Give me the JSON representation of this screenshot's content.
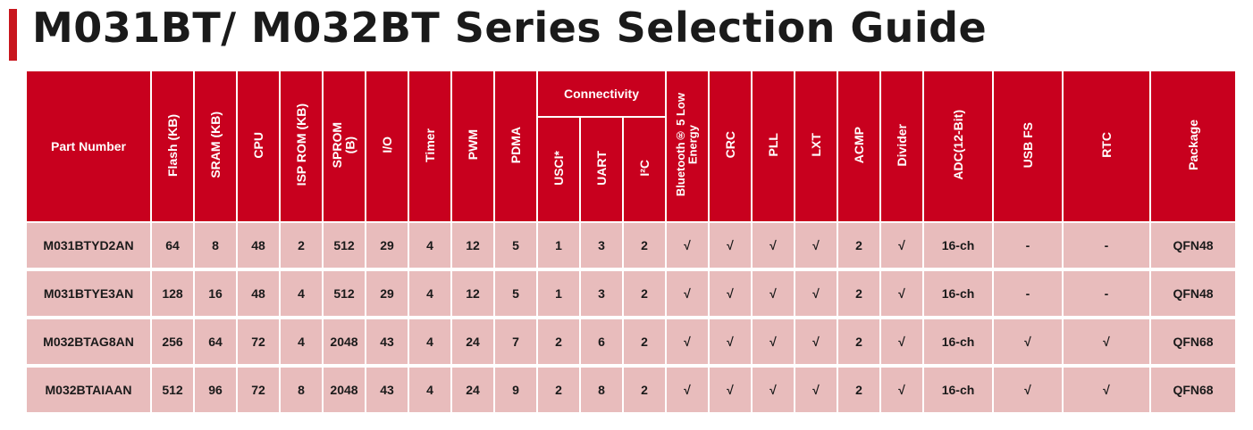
{
  "title": "M031BT/ M032BT Series Selection Guide",
  "accent_color": "#c8161d",
  "header_color": "#c8001e",
  "row_color": "#e8bcbc",
  "headers": {
    "part_number": "Part Number",
    "flash": "Flash (KB)",
    "sram": "SRAM (KB)",
    "cpu": "CPU",
    "isp_rom": "ISP ROM (KB)",
    "sprom_line1": "SPROM",
    "sprom_line2": "(B)",
    "io": "I/O",
    "timer": "Timer",
    "pwm": "PWM",
    "pdma": "PDMA",
    "connectivity": "Connectivity",
    "usci": "USCI*",
    "uart": "UART",
    "i2c": "I²C",
    "ble_line1": "Bluetooth® 5 Low",
    "ble_line2": "Energy",
    "crc": "CRC",
    "pll": "PLL",
    "lxt": "LXT",
    "acmp": "ACMP",
    "divider": "Divider",
    "adc": "ADC(12-Bit)",
    "usb_fs": "USB FS",
    "rtc": "RTC",
    "package": "Package"
  },
  "rows": [
    {
      "part": "M031BTYD2AN",
      "flash": "64",
      "sram": "8",
      "cpu": "48",
      "isp": "2",
      "sprom": "512",
      "io": "29",
      "timer": "4",
      "pwm": "12",
      "pdma": "5",
      "usci": "1",
      "uart": "3",
      "i2c": "2",
      "ble": "√",
      "crc": "√",
      "pll": "√",
      "lxt": "√",
      "acmp": "2",
      "divider": "√",
      "adc": "16-ch",
      "usb": "-",
      "rtc": "-",
      "package": "QFN48"
    },
    {
      "part": "M031BTYE3AN",
      "flash": "128",
      "sram": "16",
      "cpu": "48",
      "isp": "4",
      "sprom": "512",
      "io": "29",
      "timer": "4",
      "pwm": "12",
      "pdma": "5",
      "usci": "1",
      "uart": "3",
      "i2c": "2",
      "ble": "√",
      "crc": "√",
      "pll": "√",
      "lxt": "√",
      "acmp": "2",
      "divider": "√",
      "adc": "16-ch",
      "usb": "-",
      "rtc": "-",
      "package": "QFN48"
    },
    {
      "part": "M032BTAG8AN",
      "flash": "256",
      "sram": "64",
      "cpu": "72",
      "isp": "4",
      "sprom": "2048",
      "io": "43",
      "timer": "4",
      "pwm": "24",
      "pdma": "7",
      "usci": "2",
      "uart": "6",
      "i2c": "2",
      "ble": "√",
      "crc": "√",
      "pll": "√",
      "lxt": "√",
      "acmp": "2",
      "divider": "√",
      "adc": "16-ch",
      "usb": "√",
      "rtc": "√",
      "package": "QFN68"
    },
    {
      "part": "M032BTAIAAN",
      "flash": "512",
      "sram": "96",
      "cpu": "72",
      "isp": "8",
      "sprom": "2048",
      "io": "43",
      "timer": "4",
      "pwm": "24",
      "pdma": "9",
      "usci": "2",
      "uart": "8",
      "i2c": "2",
      "ble": "√",
      "crc": "√",
      "pll": "√",
      "lxt": "√",
      "acmp": "2",
      "divider": "√",
      "adc": "16-ch",
      "usb": "√",
      "rtc": "√",
      "package": "QFN68"
    }
  ]
}
